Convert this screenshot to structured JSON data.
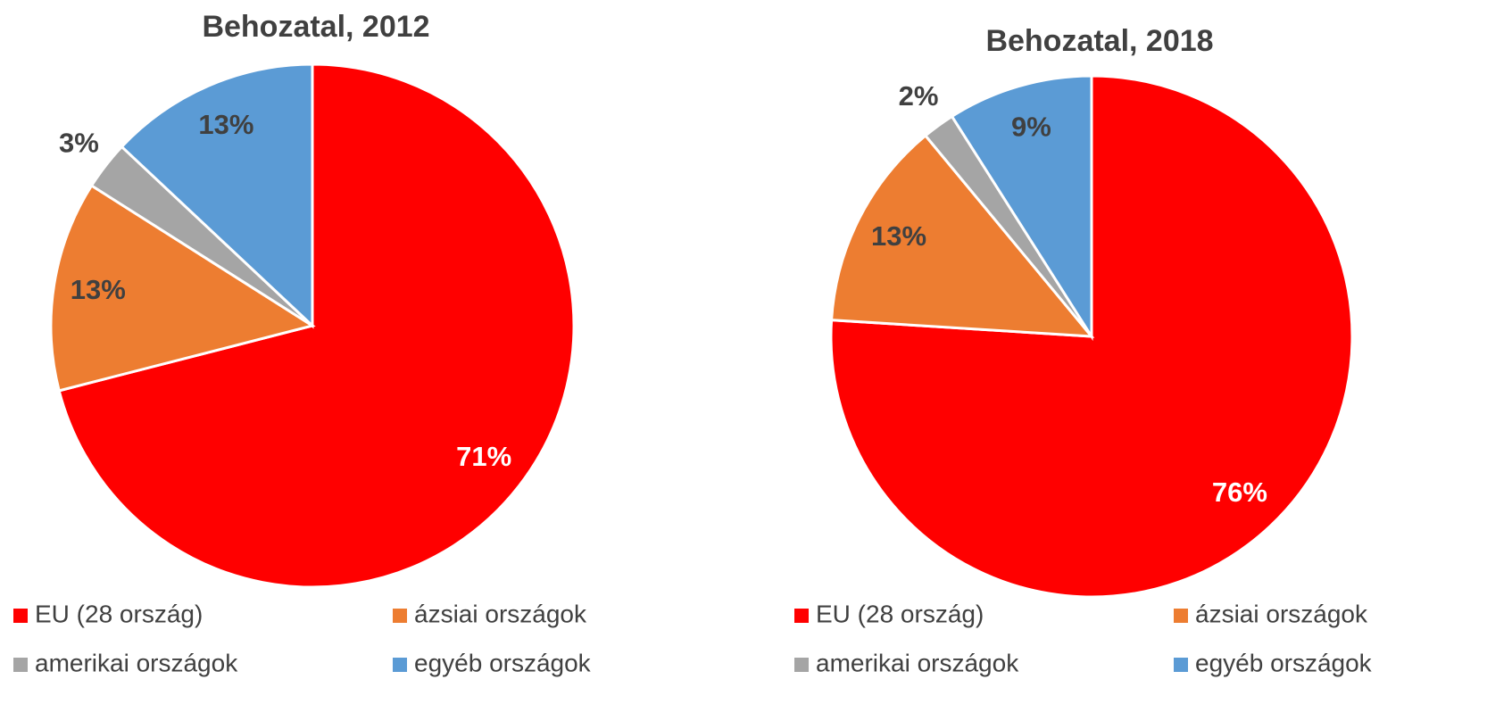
{
  "chart_data": [
    {
      "type": "pie",
      "title": "Behozatal, 2012",
      "categories": [
        "EU (28 ország)",
        "ázsiai országok",
        "amerikai országok",
        "egyéb országok"
      ],
      "values": [
        71,
        13,
        3,
        13
      ],
      "value_labels": [
        "71%",
        "13%",
        "3%",
        "13%"
      ],
      "colors": [
        "#ff0000",
        "#ed7d31",
        "#a5a5a5",
        "#5b9bd5"
      ]
    },
    {
      "type": "pie",
      "title": "Behozatal, 2018",
      "categories": [
        "EU (28 ország)",
        "ázsiai országok",
        "amerikai országok",
        "egyéb országok"
      ],
      "values": [
        76,
        13,
        2,
        9
      ],
      "value_labels": [
        "76%",
        "13%",
        "2%",
        "9%"
      ],
      "colors": [
        "#ff0000",
        "#ed7d31",
        "#a5a5a5",
        "#5b9bd5"
      ]
    }
  ]
}
